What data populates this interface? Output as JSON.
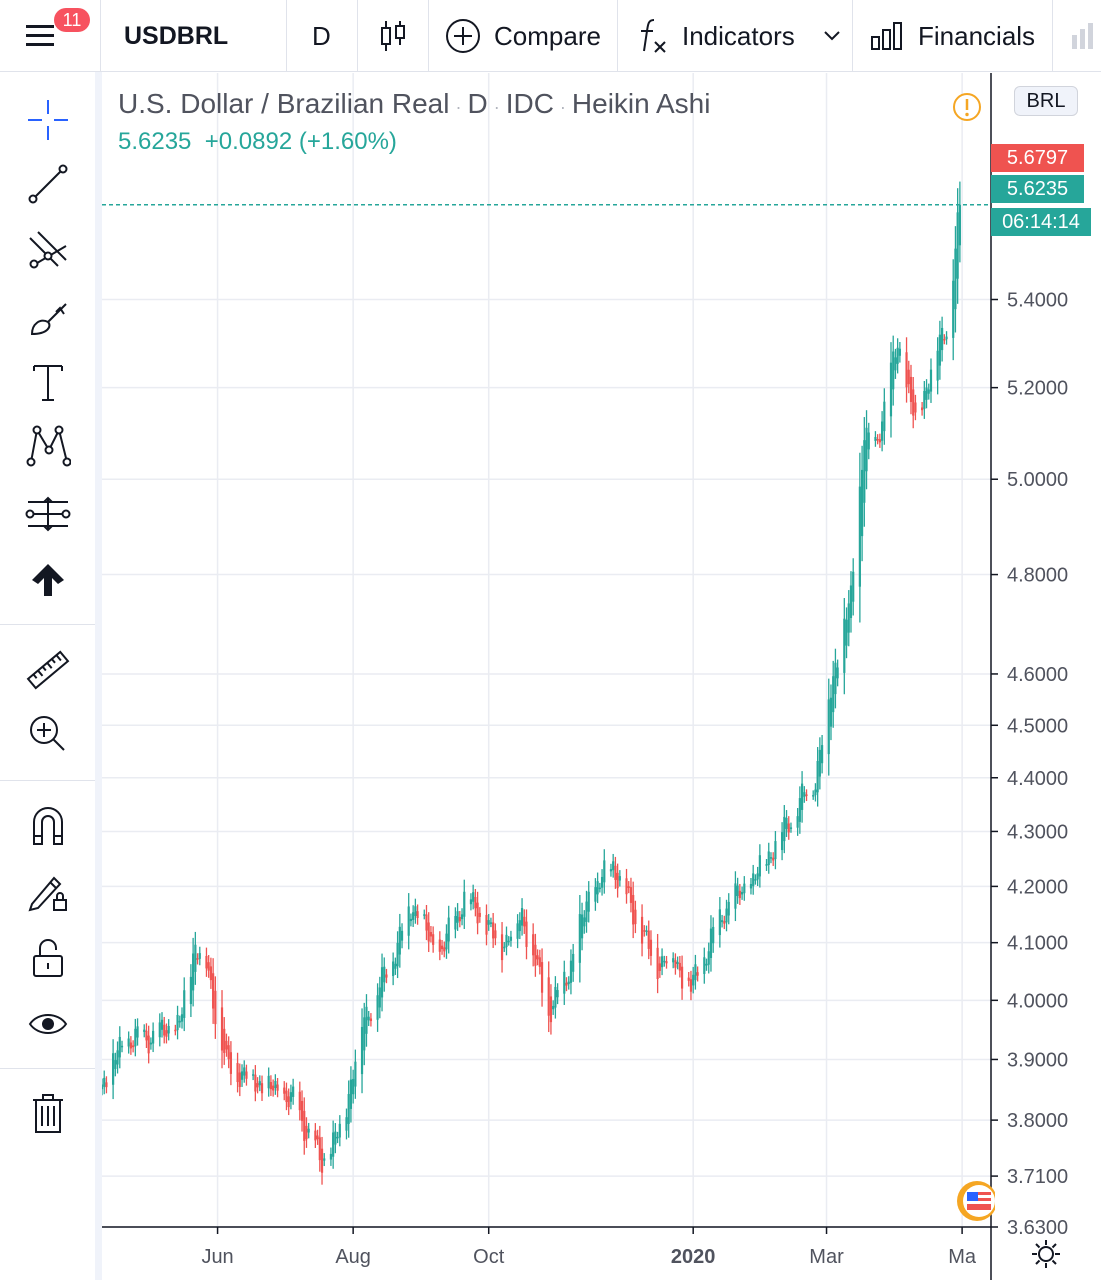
{
  "toolbar": {
    "notification_count": "11",
    "symbol": "USDBRL",
    "interval": "D",
    "compare_label": "Compare",
    "indicators_label": "Indicators",
    "financials_label": "Financials"
  },
  "legend": {
    "symbol_name": "U.S. Dollar / Brazilian Real",
    "interval": "D",
    "source": "IDC",
    "chart_style": "Heikin Ashi",
    "last_price": "5.6235",
    "change": "+0.0892",
    "change_pct": "(+1.60%)"
  },
  "price_scale": {
    "currency": "BRL",
    "high_label": "5.6797",
    "last_label": "5.6235",
    "countdown": "06:14:14"
  },
  "colors": {
    "up": "#26a69a",
    "down": "#ef5350",
    "alert": "#f5a623"
  },
  "sidebar_tools": [
    "crosshair-icon",
    "trend-line-icon",
    "pitchfork-icon",
    "brush-icon",
    "text-icon",
    "pattern-icon",
    "prediction-icon",
    "arrow-up-icon",
    "ruler-icon",
    "zoom-in-icon",
    "magnet-icon",
    "lock-drawing-icon",
    "unlock-icon",
    "eye-icon",
    "trash-icon"
  ],
  "chart_data": {
    "type": "candlestick",
    "style": "Heikin Ashi",
    "ylim": [
      3.63,
      5.95
    ],
    "y_scale": "log",
    "y_ticks": [
      "3.6300",
      "3.7100",
      "3.8000",
      "3.9000",
      "4.0000",
      "4.1000",
      "4.2000",
      "4.3000",
      "4.4000",
      "4.5000",
      "4.6000",
      "4.8000",
      "5.0000",
      "5.2000",
      "5.4000"
    ],
    "x_ticks": [
      {
        "label": "Jun",
        "date": "2019-06-01"
      },
      {
        "label": "Aug",
        "date": "2019-08-01"
      },
      {
        "label": "Oct",
        "date": "2019-10-01"
      },
      {
        "label": "2020",
        "date": "2020-01-01",
        "bold": true
      },
      {
        "label": "Mar",
        "date": "2020-03-01"
      },
      {
        "label": "Ma",
        "date": "2020-05-01"
      }
    ],
    "xlim": [
      "2019-04-10",
      "2020-05-14"
    ],
    "anchors": [
      {
        "date": "2019-04-10",
        "close": 3.86
      },
      {
        "date": "2019-04-20",
        "close": 3.93
      },
      {
        "date": "2019-05-05",
        "close": 3.94
      },
      {
        "date": "2019-05-15",
        "close": 3.96
      },
      {
        "date": "2019-05-22",
        "close": 4.1
      },
      {
        "date": "2019-05-27",
        "close": 4.06
      },
      {
        "date": "2019-06-05",
        "close": 3.89
      },
      {
        "date": "2019-06-20",
        "close": 3.86
      },
      {
        "date": "2019-07-05",
        "close": 3.83
      },
      {
        "date": "2019-07-18",
        "close": 3.73
      },
      {
        "date": "2019-07-27",
        "close": 3.79
      },
      {
        "date": "2019-08-05",
        "close": 3.96
      },
      {
        "date": "2019-08-15",
        "close": 4.04
      },
      {
        "date": "2019-08-28",
        "close": 4.17
      },
      {
        "date": "2019-09-08",
        "close": 4.07
      },
      {
        "date": "2019-09-20",
        "close": 4.18
      },
      {
        "date": "2019-09-27",
        "close": 4.15
      },
      {
        "date": "2019-10-06",
        "close": 4.09
      },
      {
        "date": "2019-10-16",
        "close": 4.15
      },
      {
        "date": "2019-10-28",
        "close": 3.98
      },
      {
        "date": "2019-11-05",
        "close": 4.04
      },
      {
        "date": "2019-11-15",
        "close": 4.18
      },
      {
        "date": "2019-11-26",
        "close": 4.24
      },
      {
        "date": "2019-12-15",
        "close": 4.06
      },
      {
        "date": "2019-12-22",
        "close": 4.08
      },
      {
        "date": "2019-12-31",
        "close": 4.02
      },
      {
        "date": "2020-01-15",
        "close": 4.16
      },
      {
        "date": "2020-01-28",
        "close": 4.21
      },
      {
        "date": "2020-02-10",
        "close": 4.3
      },
      {
        "date": "2020-02-25",
        "close": 4.4
      },
      {
        "date": "2020-03-05",
        "close": 4.62
      },
      {
        "date": "2020-03-12",
        "close": 4.75
      },
      {
        "date": "2020-03-18",
        "close": 5.1
      },
      {
        "date": "2020-03-22",
        "close": 5.05
      },
      {
        "date": "2020-03-28",
        "close": 5.18
      },
      {
        "date": "2020-04-02",
        "close": 5.3
      },
      {
        "date": "2020-04-10",
        "close": 5.12
      },
      {
        "date": "2020-04-18",
        "close": 5.26
      },
      {
        "date": "2020-04-25",
        "close": 5.36
      },
      {
        "date": "2020-04-30",
        "close": 5.62
      }
    ],
    "last": {
      "date": "2020-04-30",
      "close": 5.6235,
      "high": 5.6797
    }
  }
}
